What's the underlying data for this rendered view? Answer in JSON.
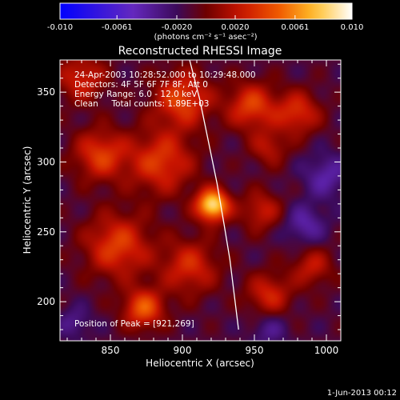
{
  "chart_data": {
    "type": "heatmap",
    "title": "Reconstructed RHESSI Image",
    "xlabel": "Heliocentric X (arcsec)",
    "ylabel": "Heliocentric Y (arcsec)",
    "xlim": [
      815,
      1010
    ],
    "ylim": [
      172,
      373
    ],
    "x_ticks": [
      850,
      900,
      950,
      1000
    ],
    "y_ticks": [
      200,
      250,
      300,
      350
    ],
    "annotations": {
      "time_range": "24-Apr-2003 10:28:52.000 to 10:29:48.000",
      "detectors": "Detectors: 4F 5F 6F 7F 8F, Att 0",
      "energy_range": "Energy Range: 6.0 - 12.0 keV",
      "clean_counts": "Clean     Total counts: 1.89E+03",
      "peak": "Position of Peak = [921,269]"
    },
    "peak_position": [
      921,
      269
    ],
    "colorbar": {
      "range": [
        -0.01,
        0.01
      ],
      "tick_labels": [
        "-0.010",
        "-0.0061",
        "-0.0020",
        "0.0020",
        "0.0061",
        "0.010"
      ],
      "tick_values": [
        -0.01,
        -0.0061,
        -0.002,
        0.002,
        0.0061,
        0.01
      ],
      "unit_label": "(photons cm⁻² s⁻¹ asec⁻²)"
    },
    "limb_curve": [
      [
        905,
        373
      ],
      [
        912,
        345
      ],
      [
        918,
        315
      ],
      [
        924,
        285
      ],
      [
        929,
        255
      ],
      [
        933,
        230
      ],
      [
        936,
        205
      ],
      [
        939,
        180
      ]
    ],
    "sources": [
      {
        "x": 921,
        "y": 269,
        "amp": 0.01,
        "sigma": 8
      },
      {
        "x": 873,
        "y": 195,
        "amp": 0.0058,
        "sigma": 10
      },
      {
        "x": 855,
        "y": 240,
        "amp": 0.005,
        "sigma": 16
      },
      {
        "x": 885,
        "y": 300,
        "amp": 0.0048,
        "sigma": 16
      },
      {
        "x": 900,
        "y": 345,
        "amp": 0.0052,
        "sigma": 14
      },
      {
        "x": 948,
        "y": 340,
        "amp": 0.005,
        "sigma": 12
      },
      {
        "x": 980,
        "y": 335,
        "amp": 0.0044,
        "sigma": 11
      },
      {
        "x": 843,
        "y": 305,
        "amp": 0.0048,
        "sigma": 13
      },
      {
        "x": 830,
        "y": 360,
        "amp": 0.004,
        "sigma": 12
      },
      {
        "x": 955,
        "y": 265,
        "amp": 0.0036,
        "sigma": 10
      },
      {
        "x": 960,
        "y": 205,
        "amp": 0.004,
        "sigma": 11
      },
      {
        "x": 990,
        "y": 225,
        "amp": 0.0034,
        "sigma": 10
      },
      {
        "x": 905,
        "y": 225,
        "amp": 0.0042,
        "sigma": 14
      },
      {
        "x": 960,
        "y": 310,
        "amp": 0.003,
        "sigma": 9
      },
      {
        "x": 1000,
        "y": 290,
        "amp": -0.003,
        "sigma": 11
      },
      {
        "x": 985,
        "y": 255,
        "amp": -0.003,
        "sigma": 10
      },
      {
        "x": 825,
        "y": 185,
        "amp": -0.0022,
        "sigma": 8
      },
      {
        "x": 960,
        "y": 180,
        "amp": -0.0022,
        "sigma": 9
      }
    ],
    "baseline": -0.0012
  },
  "footer": {
    "timestamp": "1-Jun-2013 00:12"
  },
  "colors": {
    "background": "#000000",
    "axis": "#ffffff",
    "limb": "#ffffff"
  }
}
